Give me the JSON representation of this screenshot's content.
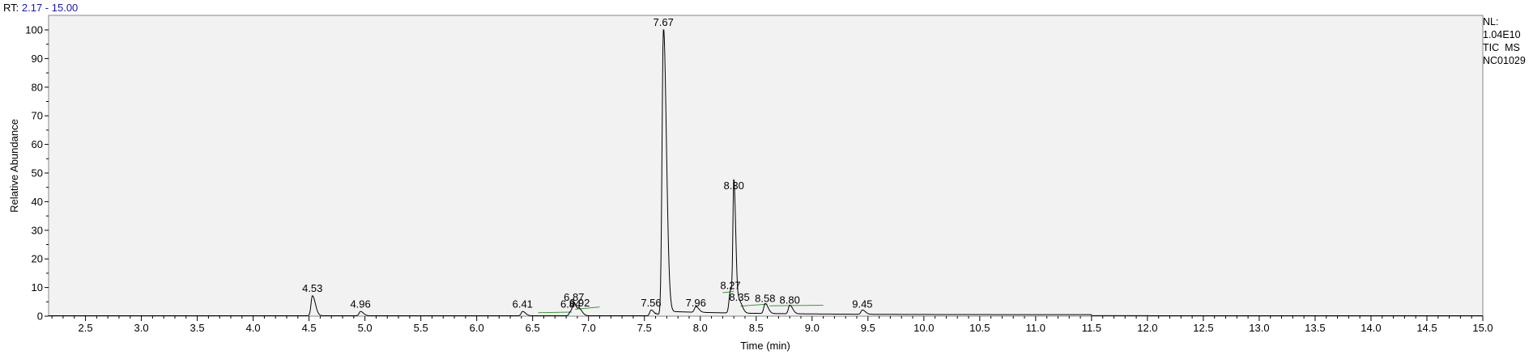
{
  "header": {
    "rt_label": "RT:",
    "rt_range": "2.17 - 15.00"
  },
  "info": {
    "nl_label": "NL:",
    "nl_value": "1.04E10",
    "scan_type": "TIC  MS",
    "file_name": "NC01029"
  },
  "chart_data": {
    "type": "line",
    "xlabel": "Time (min)",
    "ylabel": "Relative Abundance",
    "xlim": [
      2.17,
      15.0
    ],
    "ylim": [
      0,
      100
    ],
    "x_ticks": [
      "2.5",
      "3.0",
      "3.5",
      "4.0",
      "4.5",
      "5.0",
      "5.5",
      "6.0",
      "6.5",
      "7.0",
      "7.5",
      "8.0",
      "8.5",
      "9.0",
      "9.5",
      "10.0",
      "10.5",
      "11.0",
      "11.5",
      "12.0",
      "12.5",
      "13.0",
      "13.5",
      "14.0",
      "14.5",
      "15.0"
    ],
    "y_ticks": [
      "0",
      "10",
      "20",
      "30",
      "40",
      "50",
      "60",
      "70",
      "80",
      "90",
      "100"
    ],
    "grid": false,
    "colors": {
      "trace": "#000000",
      "plot_background": "#f2f2f2",
      "baseline_fit": "#3a9a3a",
      "rt_value": "#1a1aa6"
    },
    "peaks": [
      {
        "rt": 4.53,
        "label": "4.53",
        "height": 7
      },
      {
        "rt": 4.96,
        "label": "4.96",
        "height": 1.5
      },
      {
        "rt": 6.41,
        "label": "6.41",
        "height": 1.5
      },
      {
        "rt": 6.84,
        "label": "6.84",
        "height": 1.5
      },
      {
        "rt": 6.87,
        "label": "6.87",
        "height": 4
      },
      {
        "rt": 6.92,
        "label": "6.92",
        "height": 2
      },
      {
        "rt": 7.56,
        "label": "7.56",
        "height": 2
      },
      {
        "rt": 7.67,
        "label": "7.67",
        "height": 100
      },
      {
        "rt": 7.96,
        "label": "7.96",
        "height": 2
      },
      {
        "rt": 8.27,
        "label": "8.27",
        "height": 8
      },
      {
        "rt": 8.3,
        "label": "8.30",
        "height": 43
      },
      {
        "rt": 8.35,
        "label": "8.35",
        "height": 4
      },
      {
        "rt": 8.58,
        "label": "8.58",
        "height": 3.5
      },
      {
        "rt": 8.8,
        "label": "8.80",
        "height": 3
      },
      {
        "rt": 9.45,
        "label": "9.45",
        "height": 1.5
      }
    ]
  }
}
